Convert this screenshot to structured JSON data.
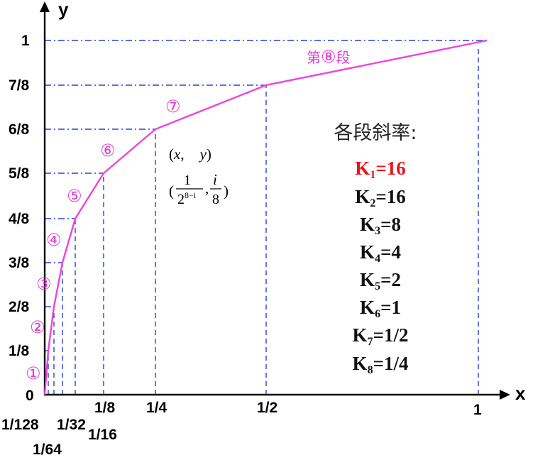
{
  "axes": {
    "x_label": "x",
    "y_label": "y",
    "origin_label": "0"
  },
  "y_ticks": [
    "1/8",
    "2/8",
    "3/8",
    "4/8",
    "5/8",
    "6/8",
    "7/8",
    "1"
  ],
  "x_ticks": {
    "x_1_128": "1/128",
    "x_1_64": "1/64",
    "x_1_32": "1/32",
    "x_1_16": "1/16",
    "x_1_8": "1/8",
    "x_1_4": "1/4",
    "x_1_2": "1/2",
    "x_1": "1"
  },
  "segments": [
    "①",
    "②",
    "③",
    "④",
    "⑤",
    "⑥",
    "⑦"
  ],
  "segment8": {
    "prefix": "第",
    "number": "⑧",
    "suffix": "段"
  },
  "coordinate_formula": {
    "open": "(",
    "x": "x",
    "comma": ",",
    "y": "y",
    "close": ")",
    "x_num": "1",
    "x_den_base": "2",
    "x_den_exp": "8−i",
    "y_num": "i",
    "y_den": "8"
  },
  "slopes": {
    "title": "各段斜率:",
    "items": [
      {
        "k": "K",
        "sub": "1",
        "value": "=16",
        "highlight": true
      },
      {
        "k": "K",
        "sub": "2",
        "value": "=16",
        "highlight": false
      },
      {
        "k": "K",
        "sub": "3",
        "value": "=8",
        "highlight": false
      },
      {
        "k": "K",
        "sub": "4",
        "value": "=4",
        "highlight": false
      },
      {
        "k": "K",
        "sub": "5",
        "value": "=2",
        "highlight": false
      },
      {
        "k": "K",
        "sub": "6",
        "value": "=1",
        "highlight": false
      },
      {
        "k": "K",
        "sub": "7",
        "value": "=1/2",
        "highlight": false
      },
      {
        "k": "K",
        "sub": "8",
        "value": "=1/4",
        "highlight": false
      }
    ]
  },
  "colors": {
    "curve": "#ee44dd",
    "guides": "#2d3fd8",
    "segment_labels": "#e23ad6",
    "highlight": "#e8141b"
  }
}
